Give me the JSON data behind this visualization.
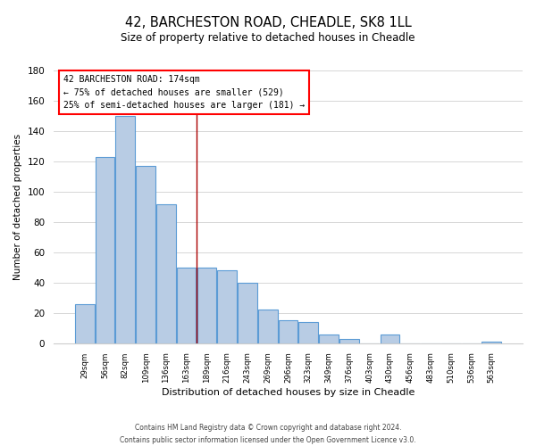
{
  "title": "42, BARCHESTON ROAD, CHEADLE, SK8 1LL",
  "subtitle": "Size of property relative to detached houses in Cheadle",
  "xlabel": "Distribution of detached houses by size in Cheadle",
  "ylabel": "Number of detached properties",
  "bar_labels": [
    "29sqm",
    "56sqm",
    "82sqm",
    "109sqm",
    "136sqm",
    "163sqm",
    "189sqm",
    "216sqm",
    "243sqm",
    "269sqm",
    "296sqm",
    "323sqm",
    "349sqm",
    "376sqm",
    "403sqm",
    "430sqm",
    "456sqm",
    "483sqm",
    "510sqm",
    "536sqm",
    "563sqm"
  ],
  "bar_values": [
    26,
    123,
    150,
    117,
    92,
    50,
    50,
    48,
    40,
    22,
    15,
    14,
    6,
    3,
    0,
    6,
    0,
    0,
    0,
    0,
    1
  ],
  "bar_color": "#b8cce4",
  "bar_edge_color": "#5b9bd5",
  "ylim": [
    0,
    180
  ],
  "yticks": [
    0,
    20,
    40,
    60,
    80,
    100,
    120,
    140,
    160,
    180
  ],
  "marker_label": "42 BARCHESTON ROAD: 174sqm",
  "annotation_line1": "← 75% of detached houses are smaller (529)",
  "annotation_line2": "25% of semi-detached houses are larger (181) →",
  "vline_x": 5.5,
  "footer1": "Contains HM Land Registry data © Crown copyright and database right 2024.",
  "footer2": "Contains public sector information licensed under the Open Government Licence v3.0."
}
